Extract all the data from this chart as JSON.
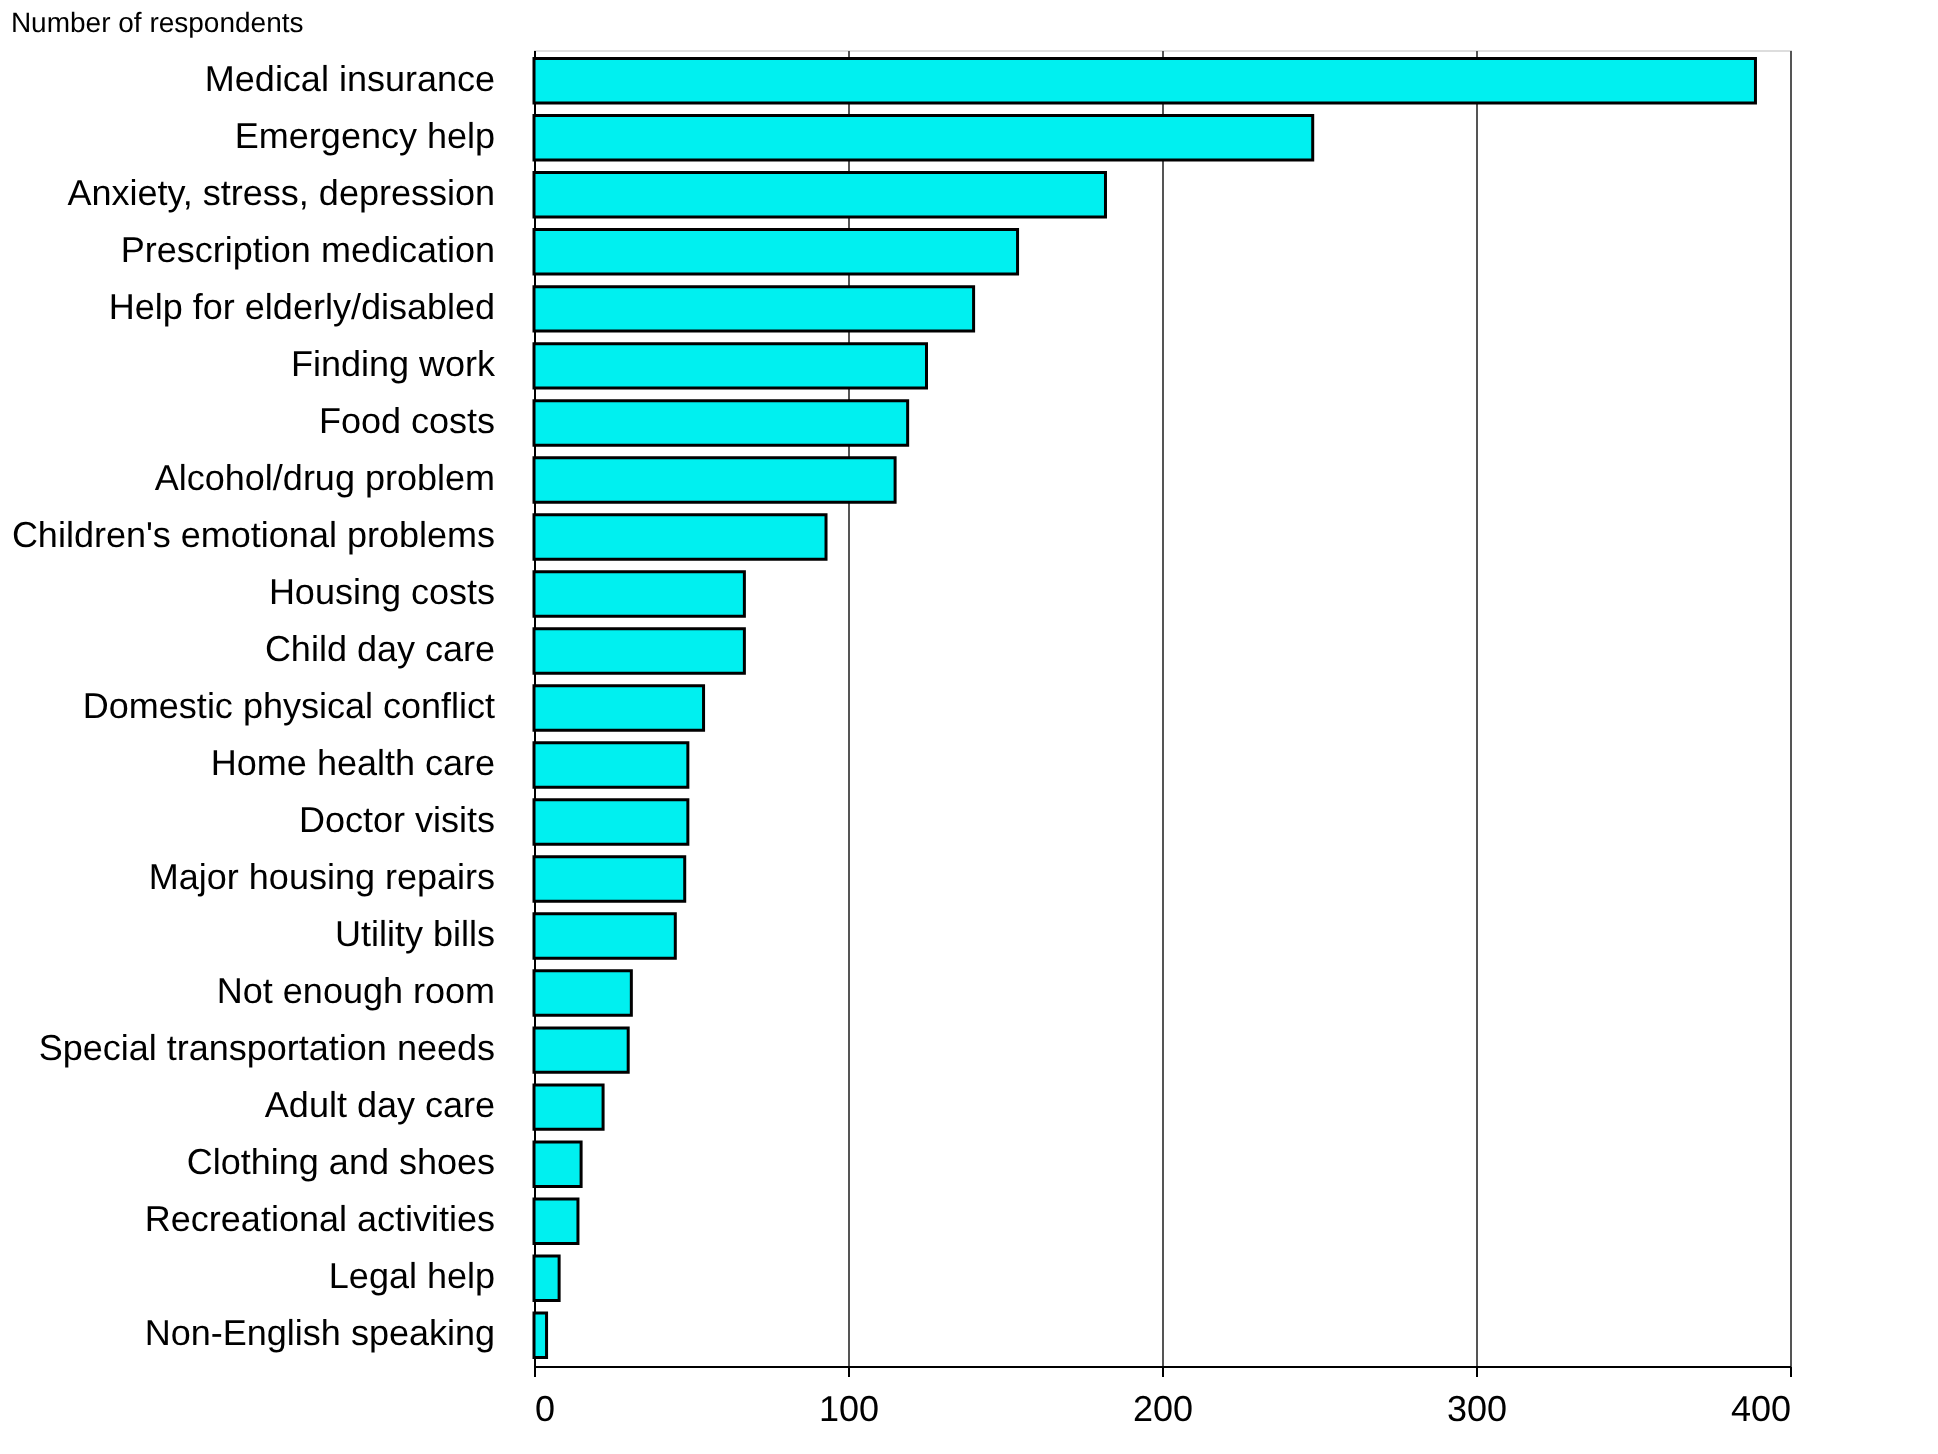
{
  "chart_data": {
    "type": "bar",
    "orientation": "horizontal",
    "xlabel": "Number of respondents",
    "categories": [
      "Medical insurance",
      "Emergency help",
      "Anxiety, stress, depression",
      "Prescription medication",
      "Help for elderly/disabled",
      "Finding work",
      "Food costs",
      "Alcohol/drug problem",
      "Children's emotional problems",
      "Housing costs",
      "Child day care",
      "Domestic physical conflict",
      "Home health care",
      "Doctor visits",
      "Major housing repairs",
      "Utility bills",
      "Not enough room",
      "Special transportation needs",
      "Adult day care",
      "Clothing and shoes",
      "Recreational activities",
      "Legal help",
      "Non-English speaking"
    ],
    "values": [
      389,
      248,
      182,
      154,
      140,
      125,
      119,
      115,
      93,
      67,
      67,
      54,
      49,
      49,
      48,
      45,
      31,
      30,
      22,
      15,
      14,
      8,
      4
    ],
    "color": "#00f0f0",
    "xlim": [
      0,
      400
    ],
    "xticks": [
      0,
      100,
      200,
      300,
      400
    ],
    "grid": "x"
  }
}
